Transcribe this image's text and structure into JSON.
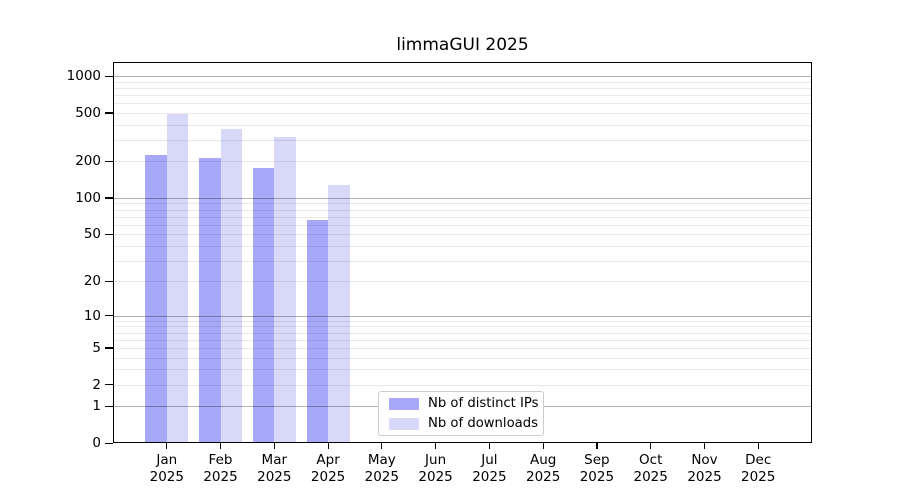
{
  "title": "limmaGUI 2025",
  "chart_data": {
    "type": "bar",
    "title": "limmaGUI 2025",
    "scale": "log1p (symlog-like: 0 linear origin, log decades 1/10/100/1000)",
    "categories": [
      "Jan",
      "Feb",
      "Mar",
      "Apr",
      "May",
      "Jun",
      "Jul",
      "Aug",
      "Sep",
      "Oct",
      "Nov",
      "Dec"
    ],
    "x_year_label": "2025",
    "series": [
      {
        "name": "Nb of distinct IPs",
        "color": "#a8a8f8",
        "values": [
          225,
          215,
          175,
          65,
          0,
          0,
          0,
          0,
          0,
          0,
          0,
          0
        ]
      },
      {
        "name": "Nb of downloads",
        "color": "#d8d8f8",
        "values": [
          490,
          370,
          315,
          128,
          0,
          0,
          0,
          0,
          0,
          0,
          0,
          0
        ]
      }
    ],
    "yticks": [
      0,
      1,
      2,
      5,
      10,
      20,
      50,
      100,
      200,
      500,
      1000
    ],
    "ylim": [
      0,
      1300
    ],
    "xlabel": "",
    "ylabel": "",
    "grid": "horizontal only; faint minor lines each decade step, darker lines at 1, 10, 100, 1000",
    "legend_position": "inside axes, lower center",
    "legend_entries": [
      "Nb of distinct IPs",
      "Nb of downloads"
    ]
  },
  "colors": {
    "background": "#ffffff",
    "axis": "#000000",
    "major_grid": "#b3b3b3",
    "minor_grid": "#e9e9e9",
    "legend_border": "#cccccc",
    "bar_distinct_ips": "#a8a8f8",
    "bar_downloads": "#d8d8f8"
  }
}
